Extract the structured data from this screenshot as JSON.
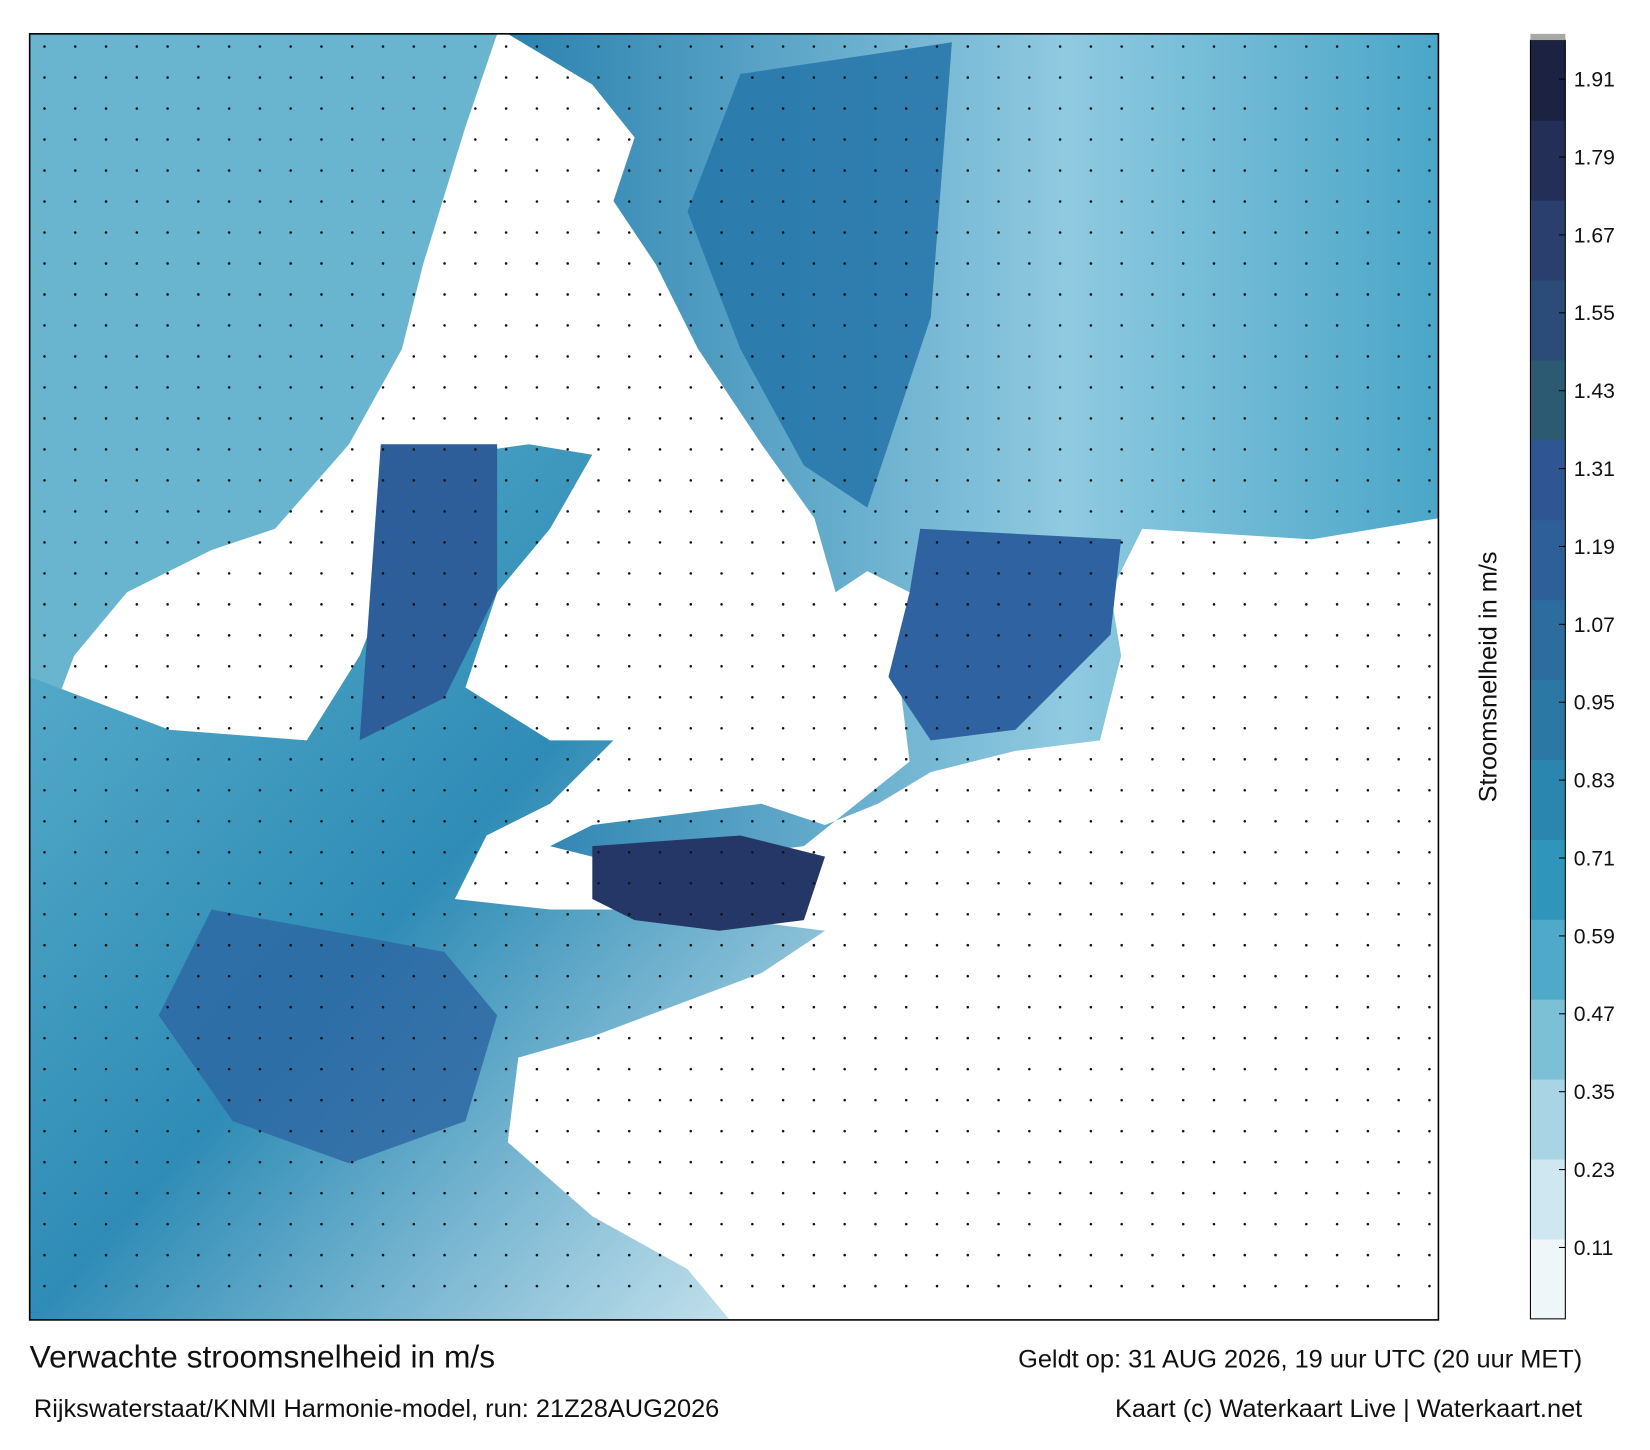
{
  "chart_data": {
    "type": "map",
    "title": "Verwachte stroomsnelheid in m/s",
    "valid_time": "Geldt op: 31 AUG 2026, 19 uur UTC (20 uur MET)",
    "subtitle": "Rijkswaterstaat/KNMI Harmonie-model, run: 21Z28AUG2026",
    "credit": "Kaart (c) Waterkaart Live | Waterkaart.net",
    "colorbar": {
      "label": "Stroomsnelheid in m/s",
      "lim": [
        0,
        1.97
      ],
      "ticks": [
        0.11,
        0.23,
        0.35,
        0.47,
        0.59,
        0.71,
        0.83,
        0.95,
        1.07,
        1.19,
        1.31,
        1.43,
        1.55,
        1.67,
        1.79,
        1.91
      ],
      "colors": [
        "#eef6f9",
        "#cfe7f0",
        "#a8d4e3",
        "#7cc0d6",
        "#4eaac8",
        "#2f95bb",
        "#2a86ae",
        "#2b78a5",
        "#2d6c9f",
        "#2f5f99",
        "#2f5593",
        "#2b5a72",
        "#2b4c78",
        "#2a3f6e",
        "#242f58",
        "#1c2242"
      ]
    }
  }
}
